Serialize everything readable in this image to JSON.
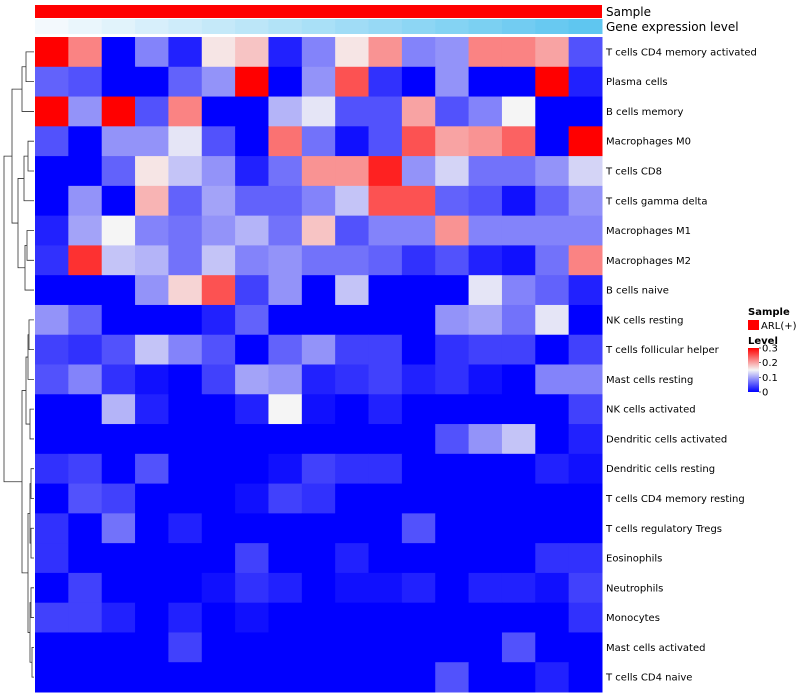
{
  "chart_data": {
    "type": "heatmap",
    "title": "",
    "column_annotations": [
      {
        "name": "Sample",
        "label": "Sample"
      },
      {
        "name": "Gene expression level",
        "label": "Gene expression level",
        "palette": [
          "#f3f9fd",
          "#5fc6f0"
        ]
      }
    ],
    "n_columns": 17,
    "rows": [
      "T cells CD4 memory activated",
      "Plasma cells",
      "B cells memory",
      "Macrophages M0",
      "T cells CD8",
      "T cells gamma delta",
      "Macrophages M1",
      "Macrophages M2",
      "B cells naive",
      "NK cells resting",
      "T cells follicular helper",
      "Mast cells resting",
      "NK cells activated",
      "Dendritic cells activated",
      "Dendritic cells resting",
      "T cells CD4 memory resting",
      "T cells regulatory  Tregs",
      "Eosinophils",
      "Neutrophils",
      "Monocytes",
      "Mast cells activated",
      "T cells CD4 naive"
    ],
    "values": [
      [
        0.3,
        0.22,
        0.0,
        0.08,
        0.02,
        0.16,
        0.18,
        0.02,
        0.08,
        0.16,
        0.21,
        0.08,
        0.09,
        0.22,
        0.22,
        0.2,
        0.05
      ],
      [
        0.06,
        0.05,
        0.0,
        0.0,
        0.06,
        0.09,
        0.3,
        0.0,
        0.09,
        0.25,
        0.03,
        0.0,
        0.09,
        0.0,
        0.0,
        0.3,
        0.02
      ],
      [
        0.3,
        0.09,
        0.3,
        0.05,
        0.22,
        0.0,
        0.0,
        0.11,
        0.14,
        0.05,
        0.05,
        0.2,
        0.05,
        0.08,
        0.15,
        0.0,
        0.0
      ],
      [
        0.05,
        0.0,
        0.09,
        0.09,
        0.14,
        0.05,
        0.0,
        0.23,
        0.07,
        0.01,
        0.05,
        0.25,
        0.2,
        0.21,
        0.24,
        0.0,
        0.3
      ],
      [
        0.0,
        0.0,
        0.06,
        0.16,
        0.12,
        0.09,
        0.02,
        0.07,
        0.21,
        0.21,
        0.28,
        0.09,
        0.13,
        0.07,
        0.07,
        0.09,
        0.13
      ],
      [
        0.0,
        0.09,
        0.0,
        0.19,
        0.06,
        0.1,
        0.06,
        0.06,
        0.08,
        0.12,
        0.25,
        0.25,
        0.06,
        0.05,
        0.01,
        0.06,
        0.09
      ],
      [
        0.02,
        0.1,
        0.15,
        0.08,
        0.07,
        0.09,
        0.11,
        0.07,
        0.18,
        0.05,
        0.08,
        0.08,
        0.21,
        0.08,
        0.08,
        0.08,
        0.08
      ],
      [
        0.03,
        0.27,
        0.12,
        0.11,
        0.07,
        0.12,
        0.08,
        0.09,
        0.07,
        0.07,
        0.06,
        0.03,
        0.05,
        0.02,
        0.01,
        0.07,
        0.22
      ],
      [
        0.0,
        0.0,
        0.0,
        0.09,
        0.17,
        0.25,
        0.04,
        0.09,
        0.0,
        0.12,
        0.0,
        0.0,
        0.0,
        0.14,
        0.08,
        0.06,
        0.02
      ],
      [
        0.09,
        0.06,
        0.0,
        0.0,
        0.0,
        0.02,
        0.06,
        0.0,
        0.0,
        0.0,
        0.0,
        0.0,
        0.09,
        0.1,
        0.07,
        0.14,
        0.0
      ],
      [
        0.04,
        0.03,
        0.05,
        0.12,
        0.08,
        0.05,
        0.0,
        0.06,
        0.09,
        0.04,
        0.04,
        0.0,
        0.03,
        0.04,
        0.04,
        0.0,
        0.04
      ],
      [
        0.05,
        0.08,
        0.03,
        0.01,
        0.0,
        0.04,
        0.1,
        0.09,
        0.02,
        0.03,
        0.04,
        0.02,
        0.03,
        0.01,
        0.0,
        0.08,
        0.08
      ],
      [
        0.0,
        0.0,
        0.11,
        0.02,
        0.0,
        0.0,
        0.02,
        0.15,
        0.01,
        0.0,
        0.02,
        0.0,
        0.0,
        0.0,
        0.0,
        0.0,
        0.04
      ],
      [
        0.0,
        0.0,
        0.0,
        0.0,
        0.0,
        0.0,
        0.0,
        0.0,
        0.0,
        0.0,
        0.0,
        0.0,
        0.05,
        0.09,
        0.12,
        0.0,
        0.02
      ],
      [
        0.03,
        0.04,
        0.0,
        0.05,
        0.0,
        0.0,
        0.0,
        0.01,
        0.04,
        0.03,
        0.03,
        0.0,
        0.0,
        0.0,
        0.0,
        0.02,
        0.01
      ],
      [
        0.0,
        0.05,
        0.04,
        0.0,
        0.0,
        0.0,
        0.01,
        0.04,
        0.03,
        0.0,
        0.0,
        0.0,
        0.0,
        0.0,
        0.0,
        0.0,
        0.0
      ],
      [
        0.03,
        0.0,
        0.07,
        0.0,
        0.02,
        0.0,
        0.0,
        0.0,
        0.0,
        0.0,
        0.0,
        0.05,
        0.0,
        0.0,
        0.0,
        0.0,
        0.0
      ],
      [
        0.03,
        0.0,
        0.0,
        0.0,
        0.0,
        0.0,
        0.04,
        0.0,
        0.0,
        0.02,
        0.0,
        0.0,
        0.0,
        0.0,
        0.0,
        0.03,
        0.03
      ],
      [
        0.0,
        0.04,
        0.0,
        0.0,
        0.0,
        0.01,
        0.03,
        0.02,
        0.0,
        0.01,
        0.01,
        0.02,
        0.0,
        0.02,
        0.02,
        0.01,
        0.04
      ],
      [
        0.04,
        0.04,
        0.02,
        0.0,
        0.02,
        0.0,
        0.01,
        0.0,
        0.0,
        0.0,
        0.0,
        0.0,
        0.0,
        0.0,
        0.0,
        0.0,
        0.03
      ],
      [
        0.0,
        0.0,
        0.0,
        0.0,
        0.04,
        0.0,
        0.0,
        0.0,
        0.0,
        0.0,
        0.0,
        0.0,
        0.0,
        0.0,
        0.05,
        0.0,
        0.0
      ],
      [
        0.0,
        0.0,
        0.0,
        0.0,
        0.0,
        0.0,
        0.0,
        0.0,
        0.0,
        0.0,
        0.0,
        0.0,
        0.05,
        0.0,
        0.0,
        0.02,
        0.0
      ]
    ],
    "color_scale": {
      "min": 0,
      "mid": 0.15,
      "max": 0.3,
      "low": "#0000ff",
      "midcolor": "#f5f5f5",
      "high": "#ff0000"
    },
    "legend": {
      "position": "right",
      "sample_title": "Sample",
      "sample_entries": [
        {
          "label": "ARL(+)",
          "color": "#ff0000"
        }
      ],
      "level_title": "Level",
      "level_ticks": [
        0.3,
        0.2,
        0.1,
        0
      ]
    },
    "row_dendrogram": true
  }
}
